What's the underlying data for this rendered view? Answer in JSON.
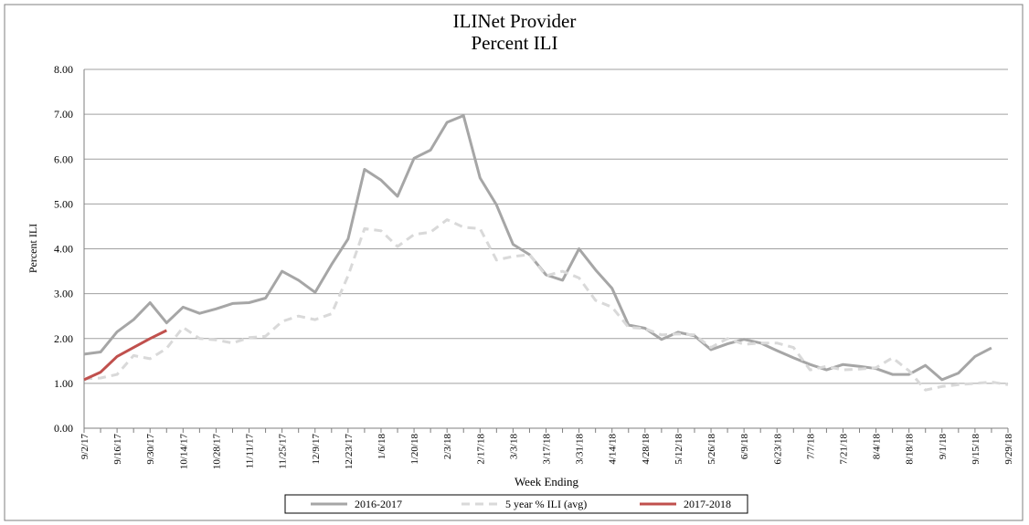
{
  "chart_data": {
    "type": "line",
    "title": "ILINet Provider",
    "subtitle": "Percent ILI",
    "y_label": "Percent ILI",
    "x_label": "Week Ending",
    "categories": [
      "9/2/17",
      null,
      "9/16/17",
      null,
      "9/30/17",
      null,
      "10/14/17",
      null,
      "10/28/17",
      null,
      "11/11/17",
      null,
      "11/25/17",
      null,
      "12/9/17",
      null,
      "12/23/17",
      null,
      "1/6/18",
      null,
      "1/20/18",
      null,
      "2/3/18",
      null,
      "2/17/18",
      null,
      "3/3/18",
      null,
      "3/17/18",
      null,
      "3/31/18",
      null,
      "4/14/18",
      null,
      "4/28/18",
      null,
      "5/12/18",
      null,
      "5/26/18",
      null,
      "6/9/18",
      null,
      "6/23/18",
      null,
      "7/7/18",
      null,
      "7/21/18",
      null,
      "8/4/18",
      null,
      "8/18/18",
      null,
      "9/1/18",
      null,
      "9/15/18",
      null,
      "9/29/18"
    ],
    "series": [
      {
        "name": "2016-2017",
        "color": "#a6a6a6",
        "dashed": false,
        "values": [
          1.65,
          1.7,
          2.15,
          2.42,
          2.8,
          2.35,
          2.7,
          2.56,
          2.66,
          2.78,
          2.8,
          2.9,
          3.5,
          3.3,
          3.03,
          3.65,
          4.22,
          5.77,
          5.53,
          5.17,
          6.02,
          6.2,
          6.82,
          6.97,
          5.58,
          4.98,
          4.1,
          3.87,
          3.42,
          3.3,
          4.0,
          3.53,
          3.12,
          2.3,
          2.23,
          1.98,
          2.14,
          2.06,
          1.75,
          1.88,
          1.98,
          1.9,
          1.73,
          1.57,
          1.42,
          1.3,
          1.42,
          1.38,
          1.33,
          1.2,
          1.2,
          1.4,
          1.08,
          1.23,
          1.6,
          1.79,
          null
        ]
      },
      {
        "name": "5 year % ILI (avg)",
        "color": "#d9d9d9",
        "dashed": true,
        "values": [
          1.1,
          1.12,
          1.2,
          1.62,
          1.55,
          1.78,
          2.25,
          2.0,
          1.97,
          1.9,
          2.02,
          2.05,
          2.38,
          2.5,
          2.42,
          2.55,
          3.4,
          4.45,
          4.4,
          4.05,
          4.32,
          4.37,
          4.65,
          4.48,
          4.45,
          3.75,
          3.83,
          3.87,
          3.4,
          3.5,
          3.35,
          2.85,
          2.7,
          2.25,
          2.22,
          2.08,
          2.1,
          2.08,
          1.8,
          2.0,
          1.87,
          1.9,
          1.9,
          1.8,
          1.3,
          1.38,
          1.3,
          1.32,
          1.35,
          1.57,
          1.28,
          0.85,
          0.93,
          0.97,
          1.0,
          1.03,
          0.97
        ]
      },
      {
        "name": "2017-2018",
        "color": "#c0504d",
        "dashed": false,
        "values": [
          1.08,
          1.25,
          1.6,
          1.8,
          2.0,
          2.18,
          null,
          null,
          null,
          null,
          null,
          null,
          null,
          null,
          null,
          null,
          null,
          null,
          null,
          null,
          null,
          null,
          null,
          null,
          null,
          null,
          null,
          null,
          null,
          null,
          null,
          null,
          null,
          null,
          null,
          null,
          null,
          null,
          null,
          null,
          null,
          null,
          null,
          null,
          null,
          null,
          null,
          null,
          null,
          null,
          null,
          null,
          null,
          null,
          null,
          null,
          null
        ]
      }
    ],
    "ylim": [
      0,
      8
    ],
    "yticks": [
      {
        "value": 0,
        "label": "0.00"
      },
      {
        "value": 1,
        "label": "1.00"
      },
      {
        "value": 2,
        "label": "2.00"
      },
      {
        "value": 3,
        "label": "3.00"
      },
      {
        "value": 4,
        "label": "4.00"
      },
      {
        "value": 5,
        "label": "5.00"
      },
      {
        "value": 6,
        "label": "6.00"
      },
      {
        "value": 7,
        "label": "7.00"
      },
      {
        "value": 8,
        "label": "8.00"
      }
    ],
    "grid": true,
    "legend": "bottom"
  }
}
